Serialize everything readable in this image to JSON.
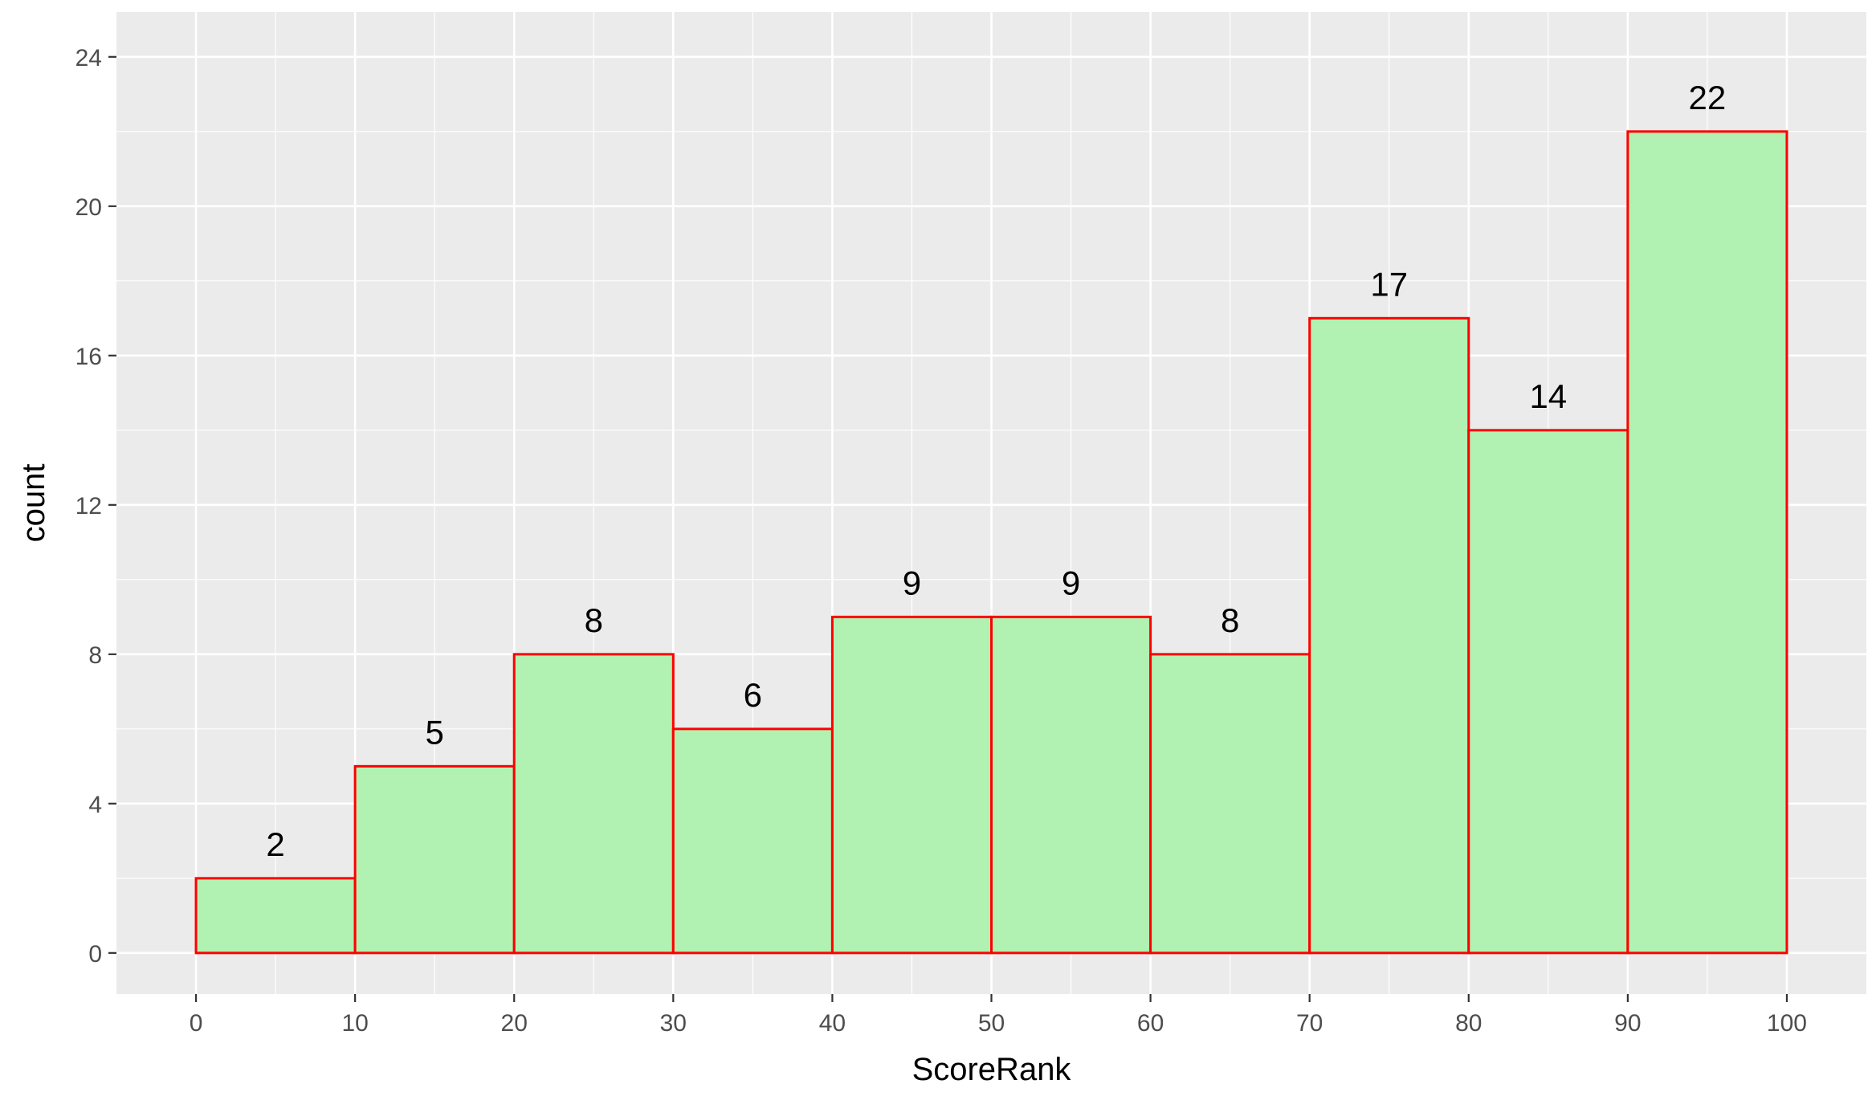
{
  "chart_data": {
    "type": "bar",
    "subtype": "histogram",
    "xlabel": "ScoreRank",
    "ylabel": "count",
    "bin_edges": [
      0,
      10,
      20,
      30,
      40,
      50,
      60,
      70,
      80,
      90,
      100
    ],
    "values": [
      2,
      5,
      8,
      6,
      9,
      9,
      8,
      17,
      14,
      22
    ],
    "xlim": [
      -5,
      105
    ],
    "ylim": [
      -1.1,
      25.2
    ],
    "x_ticks": [
      0,
      10,
      20,
      30,
      40,
      50,
      60,
      70,
      80,
      90,
      100
    ],
    "y_ticks": [
      0,
      4,
      8,
      12,
      16,
      20,
      24
    ],
    "grid": true,
    "legend": "none",
    "colors": {
      "panel_background": "#ebebeb",
      "grid_major": "#ffffff",
      "bar_fill": "#b1f1b1",
      "bar_outline": "#ff0000",
      "tick_text": "#4d4d4d",
      "tick_mark": "#333333"
    }
  }
}
